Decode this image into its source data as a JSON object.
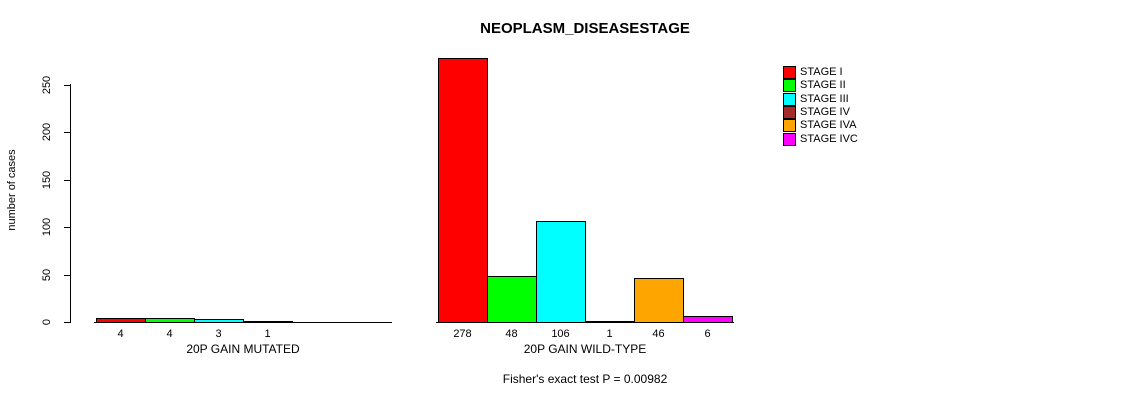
{
  "chart_data": {
    "type": "bar",
    "title": "NEOPLASM_DISEASESTAGE",
    "ylabel": "number of cases",
    "footer": "Fisher's exact test P = 0.00982",
    "ylim": [
      0,
      250
    ],
    "yticks": [
      0,
      50,
      100,
      150,
      200,
      250
    ],
    "grid": false,
    "legend_position": "right",
    "axis_color": "#000000",
    "stages": [
      {
        "name": "STAGE I",
        "color": "#FF0000"
      },
      {
        "name": "STAGE II",
        "color": "#00FF00"
      },
      {
        "name": "STAGE III",
        "color": "#00FFFF"
      },
      {
        "name": "STAGE IV",
        "color": "#A52A2A"
      },
      {
        "name": "STAGE IVA",
        "color": "#FFA500"
      },
      {
        "name": "STAGE IVC",
        "color": "#FF00FF"
      }
    ],
    "groups": [
      {
        "label": "20P GAIN MUTATED",
        "values": [
          4,
          4,
          3,
          1,
          0,
          0
        ],
        "bar_labels": [
          "4",
          "4",
          "3",
          "1",
          "",
          ""
        ]
      },
      {
        "label": "20P GAIN WILD-TYPE",
        "values": [
          278,
          48,
          106,
          1,
          46,
          6
        ],
        "bar_labels": [
          "278",
          "48",
          "106",
          "1",
          "46",
          "6"
        ]
      }
    ]
  }
}
